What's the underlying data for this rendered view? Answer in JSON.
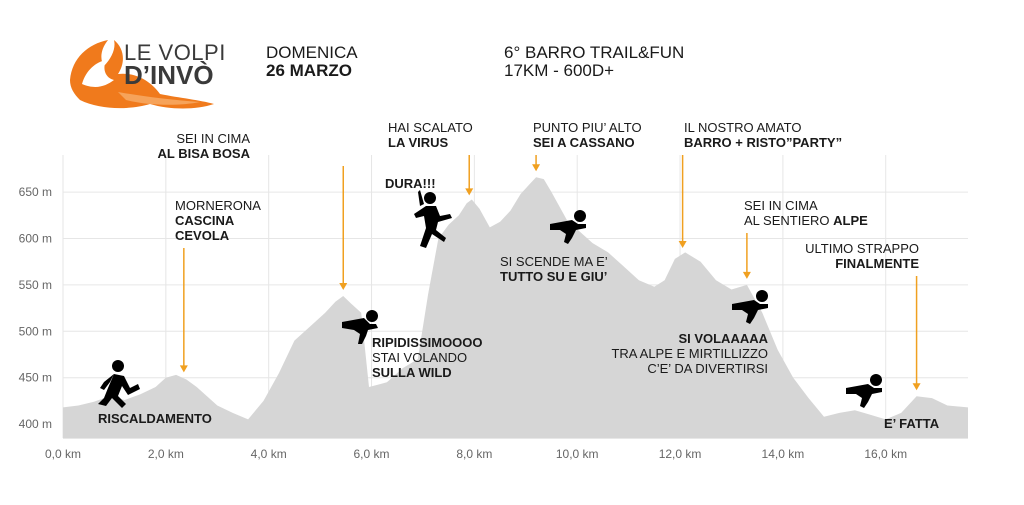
{
  "header": {
    "logo_line1": "LE VOLPI",
    "logo_line2": "D’INVÒ",
    "day": "DOMENICA",
    "date": "26 MARZO",
    "event": "6° BARRO TRAIL&FUN",
    "stats": "17KM - 600D+"
  },
  "colors": {
    "area": "#d6d6d6",
    "marker": "#f0a020",
    "logo_orange": "#f07a1c",
    "text": "#1a1a1a",
    "axis_text": "#666666",
    "grid": "#e6e6e6"
  },
  "icons": [
    "fox-logo-icon",
    "runner-icon",
    "skier-icon",
    "jumper-icon"
  ],
  "chart_data": {
    "type": "area",
    "title": "",
    "xlabel": "",
    "ylabel": "",
    "xlim": [
      0,
      17.6
    ],
    "ylim": [
      385,
      690
    ],
    "grid": true,
    "x_ticks": [
      0,
      2,
      4,
      6,
      8,
      10,
      12,
      14,
      16
    ],
    "x_tick_labels": [
      "0,0 km",
      "2,0 km",
      "4,0 km",
      "6,0 km",
      "8,0 km",
      "10,0 km",
      "12,0 km",
      "14,0 km",
      "16,0 km"
    ],
    "y_ticks": [
      400,
      450,
      500,
      550,
      600,
      650
    ],
    "y_tick_labels": [
      "400 m",
      "450 m",
      "500 m",
      "550 m",
      "600 m",
      "650 m"
    ],
    "x": [
      0,
      0.3,
      0.6,
      0.9,
      1.2,
      1.5,
      1.8,
      2.0,
      2.2,
      2.4,
      2.6,
      2.8,
      3.0,
      3.3,
      3.6,
      3.9,
      4.2,
      4.5,
      4.8,
      5.1,
      5.3,
      5.45,
      5.6,
      5.8,
      5.95,
      6.3,
      6.6,
      6.9,
      7.1,
      7.3,
      7.5,
      7.7,
      7.85,
      7.95,
      8.1,
      8.3,
      8.5,
      8.7,
      8.9,
      9.1,
      9.2,
      9.35,
      9.5,
      9.8,
      10.1,
      10.3,
      10.6,
      10.9,
      11.2,
      11.5,
      11.7,
      11.9,
      12.1,
      12.4,
      12.7,
      13.0,
      13.3,
      13.6,
      13.9,
      14.2,
      14.5,
      14.8,
      15.1,
      15.4,
      15.7,
      16.0,
      16.3,
      16.6,
      16.9,
      17.2,
      17.6
    ],
    "values": [
      418,
      420,
      424,
      430,
      426,
      432,
      440,
      450,
      453,
      448,
      440,
      430,
      420,
      412,
      405,
      425,
      455,
      490,
      505,
      520,
      532,
      538,
      530,
      520,
      440,
      445,
      460,
      470,
      540,
      600,
      615,
      625,
      638,
      642,
      632,
      612,
      618,
      630,
      648,
      660,
      666,
      664,
      650,
      620,
      605,
      595,
      585,
      570,
      555,
      548,
      555,
      578,
      585,
      575,
      555,
      545,
      550,
      520,
      480,
      450,
      428,
      408,
      412,
      415,
      410,
      405,
      412,
      430,
      428,
      420,
      418
    ],
    "annotations": [
      {
        "x": 0.9,
        "lines": [
          {
            "text": "RISCALDAMENTO",
            "bold": true
          }
        ],
        "arrow": false,
        "tx": 98,
        "ty": 423
      },
      {
        "x": 2.35,
        "lines": [
          {
            "text": "MORNERONA",
            "bold": false
          },
          {
            "text": "CASCINA",
            "bold": true
          },
          {
            "text": "CEVOLA",
            "bold": true
          }
        ],
        "arrow": true,
        "tx": 175,
        "ty": 210
      },
      {
        "x": 5.45,
        "lines": [
          {
            "text": "SEI IN CIMA",
            "bold": false
          },
          {
            "text": "AL BISA BOSA",
            "bold": true
          }
        ],
        "arrow": true,
        "tx": 250,
        "ty": 143,
        "anchor": "end"
      },
      {
        "x": 6.2,
        "lines": [
          {
            "text": "RIPIDISSIMOOOO",
            "bold": true
          },
          {
            "text": "STAI VOLANDO",
            "bold": false
          },
          {
            "text": "SULLA WILD",
            "bold": true
          }
        ],
        "arrow": false,
        "tx": 372,
        "ty": 347
      },
      {
        "x": 7.9,
        "lines": [
          {
            "text": "HAI SCALATO",
            "bold": false
          },
          {
            "text": "LA VIRUS",
            "bold": true
          }
        ],
        "arrow": true,
        "tx": 388,
        "ty": 132
      },
      {
        "x": 7.2,
        "lines": [
          {
            "text": "DURA!!!",
            "bold": true
          }
        ],
        "arrow": false,
        "tx": 385,
        "ty": 188
      },
      {
        "x": 9.2,
        "lines": [
          {
            "text": "PUNTO PIU’ ALTO",
            "bold": false
          },
          {
            "text": "SEI A CASSANO",
            "bold": true
          }
        ],
        "arrow": true,
        "tx": 533,
        "ty": 132
      },
      {
        "x": 10.0,
        "lines": [
          {
            "text": "SI SCENDE MA E’",
            "bold": false
          },
          {
            "text": "TUTTO SU E GIU’",
            "bold": true
          }
        ],
        "arrow": false,
        "tx": 500,
        "ty": 266
      },
      {
        "x": 12.05,
        "lines": [
          {
            "text": "IL NOSTRO AMATO",
            "bold": false
          },
          {
            "text": "BARRO + RISTO”PARTY”",
            "bold": true
          }
        ],
        "arrow": true,
        "tx": 684,
        "ty": 132
      },
      {
        "x": 13.3,
        "lines": [
          {
            "text": "SEI IN CIMA",
            "bold": false
          },
          {
            "text": "AL SENTIERO ALPE",
            "bold": false,
            "bold_tail": "ALPE"
          }
        ],
        "arrow": true,
        "tx": 744,
        "ty": 210
      },
      {
        "x": 12.8,
        "lines": [
          {
            "text": "SI VOLAAAAA",
            "bold": true
          },
          {
            "text": "TRA ALPE E MIRTILLIZZO",
            "bold": false
          },
          {
            "text": "C’E’ DA DIVERTIRSI",
            "bold": false
          }
        ],
        "arrow": false,
        "tx": 768,
        "ty": 343,
        "anchor": "end"
      },
      {
        "x": 16.6,
        "lines": [
          {
            "text": "ULTIMO STRAPPO",
            "bold": false
          },
          {
            "text": "FINALMENTE",
            "bold": true
          }
        ],
        "arrow": true,
        "tx": 919,
        "ty": 253,
        "anchor": "end"
      },
      {
        "x": 16.5,
        "lines": [
          {
            "text": "E’ FATTA",
            "bold": true
          }
        ],
        "arrow": false,
        "tx": 884,
        "ty": 428
      }
    ]
  }
}
